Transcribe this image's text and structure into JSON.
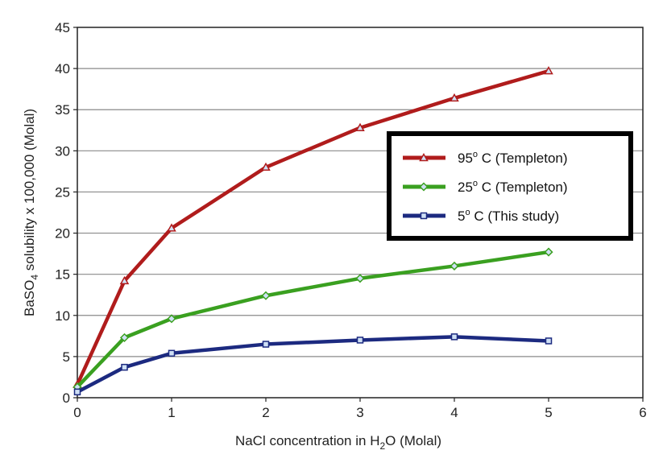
{
  "chart_data": {
    "type": "line",
    "title": "",
    "xlabel": {
      "pre": "NaCl concentration in H",
      "sub": "2",
      "post": "O (Molal)"
    },
    "ylabel": {
      "pre": "BaSO",
      "sub": "4",
      "post": " solubility x 100,000 (Molal)"
    },
    "xlim": [
      0,
      6
    ],
    "ylim": [
      0,
      45
    ],
    "xticks": [
      "0",
      "1",
      "2",
      "3",
      "4",
      "5",
      "6"
    ],
    "yticks": [
      "0",
      "5",
      "10",
      "15",
      "20",
      "25",
      "30",
      "35",
      "40",
      "45"
    ],
    "grid": "horizontal",
    "legend_position": "right",
    "series": [
      {
        "temp": "95",
        "sup": "o",
        "note": " C (Templeton)",
        "color": "#b01c1c",
        "marker": "triangle",
        "x": [
          0,
          0.5,
          1,
          2,
          3,
          4,
          5
        ],
        "y": [
          1.6,
          14.2,
          20.6,
          28.0,
          32.8,
          36.4,
          39.7
        ]
      },
      {
        "temp": "25",
        "sup": "o",
        "note": " C (Templeton)",
        "color": "#3aa020",
        "marker": "diamond",
        "x": [
          0,
          0.5,
          1,
          2,
          3,
          4,
          5
        ],
        "y": [
          1.3,
          7.3,
          9.6,
          12.4,
          14.5,
          16.0,
          17.7
        ]
      },
      {
        "temp": "5",
        "sup": "o",
        "note": " C (This study)",
        "color": "#1c2a80",
        "marker": "square",
        "x": [
          0,
          0.5,
          1,
          2,
          3,
          4,
          5
        ],
        "y": [
          0.7,
          3.7,
          5.4,
          6.5,
          7.0,
          7.4,
          6.9
        ]
      }
    ]
  }
}
